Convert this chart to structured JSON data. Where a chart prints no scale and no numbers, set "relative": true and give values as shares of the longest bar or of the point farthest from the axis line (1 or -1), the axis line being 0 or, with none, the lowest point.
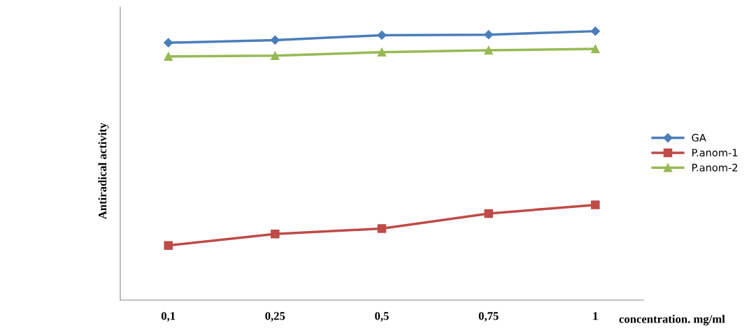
{
  "chart_data": {
    "type": "line",
    "relative": true,
    "xlabel": "concentration. mg/ml",
    "ylabel": "Antiradical activity",
    "categories": [
      "0,1",
      "0,25",
      "0,5",
      "0,75",
      "1"
    ],
    "series": [
      {
        "name": "GA",
        "color": "#4a7ebb",
        "marker": "diamond",
        "values": [
          0.957,
          0.967,
          0.985,
          0.987,
          1.0
        ]
      },
      {
        "name": "P.anom-1",
        "color": "#be4b48",
        "marker": "square",
        "values": [
          0.203,
          0.246,
          0.266,
          0.322,
          0.354
        ]
      },
      {
        "name": "P.anom-2",
        "color": "#98b954",
        "marker": "triangle",
        "values": [
          0.906,
          0.909,
          0.922,
          0.929,
          0.934
        ]
      }
    ],
    "legend": "right",
    "grid": false
  }
}
